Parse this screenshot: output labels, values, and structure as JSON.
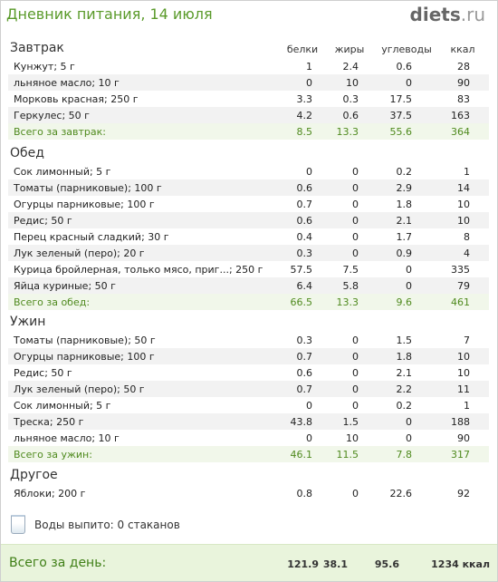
{
  "header": {
    "title": "Дневник питания, 14 июля",
    "logo_main": "diets",
    "logo_tld": ".ru"
  },
  "columns": {
    "protein": "белки",
    "fat": "жиры",
    "carbs": "углеводы",
    "kcal": "ккал"
  },
  "meals": [
    {
      "name": "Завтрак",
      "items": [
        {
          "name": "Кунжут; 5 г",
          "p": "1",
          "f": "2.4",
          "c": "0.6",
          "k": "28"
        },
        {
          "name": "льняное масло; 10 г",
          "p": "0",
          "f": "10",
          "c": "0",
          "k": "90"
        },
        {
          "name": "Морковь красная; 250 г",
          "p": "3.3",
          "f": "0.3",
          "c": "17.5",
          "k": "83"
        },
        {
          "name": "Геркулес; 50 г",
          "p": "4.2",
          "f": "0.6",
          "c": "37.5",
          "k": "163"
        }
      ],
      "total": {
        "name": "Всего за завтрак:",
        "p": "8.5",
        "f": "13.3",
        "c": "55.6",
        "k": "364"
      }
    },
    {
      "name": "Обед",
      "items": [
        {
          "name": "Сок лимонный; 5 г",
          "p": "0",
          "f": "0",
          "c": "0.2",
          "k": "1"
        },
        {
          "name": "Томаты (парниковые); 100 г",
          "p": "0.6",
          "f": "0",
          "c": "2.9",
          "k": "14"
        },
        {
          "name": "Огурцы парниковые; 100 г",
          "p": "0.7",
          "f": "0",
          "c": "1.8",
          "k": "10"
        },
        {
          "name": "Редис; 50 г",
          "p": "0.6",
          "f": "0",
          "c": "2.1",
          "k": "10"
        },
        {
          "name": "Перец красный сладкий; 30 г",
          "p": "0.4",
          "f": "0",
          "c": "1.7",
          "k": "8"
        },
        {
          "name": "Лук зеленый (перо); 20 г",
          "p": "0.3",
          "f": "0",
          "c": "0.9",
          "k": "4"
        },
        {
          "name": "Курица бройлерная, только мясо, приг...; 250 г",
          "p": "57.5",
          "f": "7.5",
          "c": "0",
          "k": "335"
        },
        {
          "name": "Яйца куриные; 50 г",
          "p": "6.4",
          "f": "5.8",
          "c": "0",
          "k": "79"
        }
      ],
      "total": {
        "name": "Всего за обед:",
        "p": "66.5",
        "f": "13.3",
        "c": "9.6",
        "k": "461"
      }
    },
    {
      "name": "Ужин",
      "items": [
        {
          "name": "Томаты (парниковые); 50 г",
          "p": "0.3",
          "f": "0",
          "c": "1.5",
          "k": "7"
        },
        {
          "name": "Огурцы парниковые; 100 г",
          "p": "0.7",
          "f": "0",
          "c": "1.8",
          "k": "10"
        },
        {
          "name": "Редис; 50 г",
          "p": "0.6",
          "f": "0",
          "c": "2.1",
          "k": "10"
        },
        {
          "name": "Лук зеленый (перо); 50 г",
          "p": "0.7",
          "f": "0",
          "c": "2.2",
          "k": "11"
        },
        {
          "name": "Сок лимонный; 5 г",
          "p": "0",
          "f": "0",
          "c": "0.2",
          "k": "1"
        },
        {
          "name": "Треска; 250 г",
          "p": "43.8",
          "f": "1.5",
          "c": "0",
          "k": "188"
        },
        {
          "name": "льняное масло; 10 г",
          "p": "0",
          "f": "10",
          "c": "0",
          "k": "90"
        }
      ],
      "total": {
        "name": "Всего за ужин:",
        "p": "46.1",
        "f": "11.5",
        "c": "7.8",
        "k": "317"
      }
    },
    {
      "name": "Другое",
      "items": [
        {
          "name": "Яблоки; 200 г",
          "p": "0.8",
          "f": "0",
          "c": "22.6",
          "k": "92"
        }
      ],
      "total": null
    }
  ],
  "water": {
    "label": "Воды выпито: 0 стаканов"
  },
  "day_total": {
    "label": "Всего за день:",
    "p": "121.9",
    "f": "38.1",
    "c": "95.6",
    "k": "1234 ккал"
  }
}
